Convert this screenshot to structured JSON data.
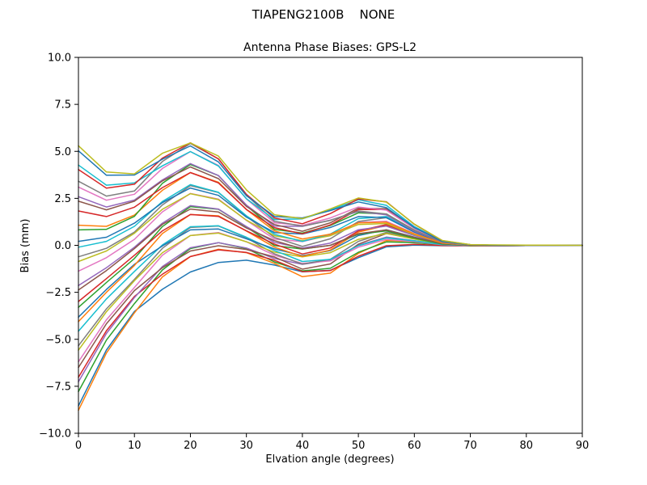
{
  "figure": {
    "background": "#ffffff",
    "frame_color": "#000000"
  },
  "chart_data": {
    "type": "line",
    "title": "TIAPENG2100B    NONE",
    "subtitle": "Antenna Phase Biases: GPS-L2",
    "xlabel": "Elvation angle (degrees)",
    "ylabel": "Bias (mm)",
    "xlim": [
      0,
      90
    ],
    "ylim": [
      -10,
      10
    ],
    "grid": false,
    "legend": "none",
    "x_ticks": [
      0,
      10,
      20,
      30,
      40,
      50,
      60,
      70,
      80,
      90
    ],
    "y_ticks": [
      -10.0,
      -7.5,
      -5.0,
      -2.5,
      0.0,
      2.5,
      5.0,
      7.5,
      10.0
    ],
    "y_tick_labels": [
      "−10.0",
      "−7.5",
      "−5.0",
      "−2.5",
      "0.0",
      "2.5",
      "5.0",
      "7.5",
      "10.0"
    ],
    "x": [
      0,
      5,
      10,
      15,
      20,
      25,
      30,
      35,
      40,
      45,
      50,
      55,
      60,
      65,
      70,
      75,
      80,
      85,
      90
    ],
    "series": [
      {
        "color": "#1f77b4",
        "values": [
          -8.54,
          -5.57,
          -3.52,
          -2.34,
          -1.42,
          -0.91,
          -0.79,
          -1.05,
          -1.41,
          -1.33,
          -0.66,
          -0.08,
          0.01,
          -0.02,
          -0.02,
          -0.02,
          -0.01,
          -0.01,
          0.0
        ]
      },
      {
        "color": "#ff7f0e",
        "values": [
          -8.78,
          -5.73,
          -3.59,
          -1.68,
          -0.6,
          -0.21,
          -0.39,
          -0.96,
          -1.67,
          -1.48,
          -0.43,
          0.26,
          0.2,
          0.03,
          -0.02,
          -0.02,
          -0.01,
          -0.01,
          0.0
        ]
      },
      {
        "color": "#2ca02c",
        "values": [
          -7.78,
          -5.04,
          -3.1,
          -1.31,
          -0.17,
          0.14,
          -0.17,
          -0.88,
          -1.36,
          -1.22,
          -0.37,
          0.18,
          0.14,
          0.02,
          -0.02,
          -0.02,
          -0.01,
          -0.01,
          0.0
        ]
      },
      {
        "color": "#d62728",
        "values": [
          -7.02,
          -4.54,
          -2.72,
          -1.54,
          -0.6,
          -0.24,
          -0.38,
          -0.79,
          -1.4,
          -1.34,
          -0.58,
          -0.02,
          0.05,
          -0.01,
          -0.02,
          -0.02,
          -0.01,
          -0.01,
          0.0
        ]
      },
      {
        "color": "#9467bd",
        "values": [
          -7.26,
          -4.69,
          -2.78,
          -1.13,
          -0.13,
          0.14,
          -0.14,
          -0.7,
          -1.01,
          -0.79,
          0.01,
          0.44,
          0.25,
          0.04,
          -0.01,
          -0.02,
          -0.01,
          0.0,
          0.0
        ]
      },
      {
        "color": "#8c564b",
        "values": [
          -6.5,
          -4.17,
          -2.41,
          -1.19,
          -0.3,
          -0.02,
          -0.22,
          -0.62,
          -1.27,
          -0.99,
          0.06,
          0.63,
          0.38,
          0.07,
          -0.01,
          -0.01,
          -0.01,
          0.0,
          0.0
        ]
      },
      {
        "color": "#e377c2",
        "values": [
          -6.2,
          -3.96,
          -2.24,
          -0.53,
          0.52,
          0.68,
          0.19,
          -0.53,
          -0.96,
          -0.83,
          -0.1,
          0.32,
          0.2,
          0.03,
          -0.01,
          -0.01,
          -0.01,
          0.0,
          0.0
        ]
      },
      {
        "color": "#7f7f7f",
        "values": [
          -5.34,
          -3.38,
          -1.81,
          -0.16,
          0.95,
          1.03,
          0.4,
          -0.45,
          -1.0,
          -0.74,
          0.21,
          0.69,
          0.39,
          0.08,
          -0.01,
          -0.01,
          0.0,
          0.0,
          0.0
        ]
      },
      {
        "color": "#bcbd22",
        "values": [
          -5.58,
          -3.53,
          -1.88,
          -0.39,
          0.52,
          0.65,
          0.19,
          -0.36,
          -0.61,
          -0.39,
          0.32,
          0.63,
          0.33,
          0.06,
          0.0,
          -0.01,
          0.0,
          0.0,
          0.0
        ]
      },
      {
        "color": "#17becf",
        "values": [
          -4.57,
          -2.85,
          -1.39,
          0.02,
          0.99,
          1.04,
          0.43,
          -0.27,
          -0.86,
          -0.75,
          -0.02,
          0.39,
          0.24,
          0.04,
          0.0,
          0.0,
          0.0,
          0.0,
          0.0
        ]
      },
      {
        "color": "#1f77b4",
        "values": [
          -3.82,
          -2.35,
          -1.01,
          -0.03,
          0.82,
          0.87,
          0.35,
          -0.19,
          -0.55,
          -0.28,
          0.52,
          0.83,
          0.44,
          0.09,
          0.0,
          0.0,
          0.0,
          0.0,
          0.0
        ]
      },
      {
        "color": "#ff7f0e",
        "values": [
          -4.06,
          -2.5,
          -1.07,
          0.63,
          1.64,
          1.57,
          0.76,
          -0.1,
          -0.59,
          -0.25,
          0.7,
          1.06,
          0.56,
          0.12,
          0.0,
          0.0,
          0.0,
          0.0,
          0.0
        ]
      },
      {
        "color": "#2ca02c",
        "values": [
          -3.3,
          -1.98,
          -0.7,
          1.0,
          2.06,
          1.92,
          0.97,
          -0.01,
          -0.2,
          0.0,
          0.59,
          0.77,
          0.38,
          0.07,
          0.0,
          0.0,
          0.0,
          0.0,
          0.0
        ]
      },
      {
        "color": "#d62728",
        "values": [
          -2.99,
          -1.77,
          -0.53,
          0.77,
          1.64,
          1.54,
          0.77,
          0.07,
          -0.46,
          -0.14,
          0.77,
          1.1,
          0.57,
          0.12,
          0.01,
          0.0,
          0.0,
          0.0,
          0.0
        ]
      },
      {
        "color": "#9467bd",
        "values": [
          -2.14,
          -1.19,
          -0.1,
          1.18,
          2.11,
          1.93,
          1.0,
          0.16,
          -0.15,
          0.12,
          0.83,
          1.02,
          0.52,
          0.11,
          0.01,
          0.0,
          0.0,
          0.0,
          0.0
        ]
      },
      {
        "color": "#8c564b",
        "values": [
          -2.38,
          -1.34,
          -0.17,
          1.12,
          1.93,
          1.77,
          0.92,
          0.25,
          -0.19,
          0.0,
          0.62,
          0.82,
          0.43,
          0.09,
          0.01,
          0.0,
          0.0,
          0.0,
          0.0
        ]
      },
      {
        "color": "#e377c2",
        "values": [
          -1.37,
          -0.66,
          0.32,
          1.78,
          2.76,
          2.46,
          1.33,
          0.33,
          0.2,
          0.55,
          1.22,
          1.28,
          0.63,
          0.13,
          0.01,
          0.0,
          0.0,
          0.0,
          0.0
        ]
      },
      {
        "color": "#7f7f7f",
        "values": [
          -0.61,
          -0.16,
          0.7,
          2.15,
          3.18,
          2.81,
          1.54,
          0.42,
          -0.06,
          0.35,
          1.27,
          1.47,
          0.75,
          0.16,
          0.01,
          0.0,
          0.0,
          0.0,
          0.0
        ]
      },
      {
        "color": "#bcbd22",
        "values": [
          -0.86,
          -0.3,
          0.64,
          1.92,
          2.75,
          2.43,
          1.34,
          0.51,
          0.25,
          0.51,
          1.11,
          1.16,
          0.57,
          0.12,
          0.02,
          0.0,
          0.0,
          0.0,
          0.0
        ]
      },
      {
        "color": "#17becf",
        "values": [
          -0.1,
          0.21,
          1.01,
          2.33,
          3.23,
          2.82,
          1.57,
          0.59,
          0.21,
          0.6,
          1.42,
          1.53,
          0.76,
          0.17,
          0.02,
          0.0,
          0.0,
          0.0,
          0.0
        ]
      },
      {
        "color": "#1f77b4",
        "values": [
          0.21,
          0.43,
          1.18,
          2.27,
          3.05,
          2.66,
          1.5,
          0.68,
          0.6,
          0.95,
          1.53,
          1.47,
          0.7,
          0.15,
          0.02,
          0.0,
          0.0,
          0.0,
          0.0
        ]
      },
      {
        "color": "#ff7f0e",
        "values": [
          1.07,
          1.01,
          1.61,
          2.93,
          3.87,
          3.36,
          1.9,
          0.77,
          0.34,
          0.59,
          1.19,
          1.23,
          0.61,
          0.13,
          0.02,
          0.0,
          0.0,
          0.0,
          0.0
        ]
      },
      {
        "color": "#2ca02c",
        "values": [
          0.82,
          0.85,
          1.54,
          3.3,
          4.3,
          3.71,
          2.11,
          0.85,
          0.65,
          1.06,
          1.73,
          1.67,
          0.81,
          0.18,
          0.02,
          0.0,
          0.0,
          0.0,
          0.0
        ]
      },
      {
        "color": "#d62728",
        "values": [
          1.83,
          1.53,
          2.03,
          3.07,
          3.87,
          3.32,
          1.91,
          0.94,
          0.61,
          1.09,
          1.91,
          1.9,
          0.93,
          0.21,
          0.02,
          0.0,
          0.0,
          0.0,
          0.0
        ]
      },
      {
        "color": "#9467bd",
        "values": [
          2.59,
          2.04,
          2.41,
          3.48,
          4.35,
          3.71,
          2.14,
          1.02,
          1.01,
          1.34,
          1.8,
          1.62,
          0.76,
          0.17,
          0.02,
          0.0,
          0.0,
          0.0,
          0.0
        ]
      },
      {
        "color": "#8c564b",
        "values": [
          2.35,
          1.89,
          2.35,
          3.43,
          4.17,
          3.55,
          2.07,
          1.11,
          0.75,
          1.2,
          1.98,
          1.95,
          0.95,
          0.21,
          0.02,
          0.0,
          0.0,
          0.0,
          0.0
        ]
      },
      {
        "color": "#e377c2",
        "values": [
          3.1,
          2.4,
          2.72,
          4.09,
          4.99,
          4.25,
          2.47,
          1.2,
          1.06,
          1.46,
          2.04,
          1.87,
          0.89,
          0.2,
          0.03,
          0.0,
          0.0,
          0.0,
          0.0
        ]
      },
      {
        "color": "#7f7f7f",
        "values": [
          3.41,
          2.62,
          2.89,
          4.46,
          5.42,
          4.6,
          2.68,
          1.28,
          1.02,
          1.33,
          1.83,
          1.67,
          0.8,
          0.18,
          0.03,
          0.0,
          0.0,
          0.0,
          0.0
        ]
      },
      {
        "color": "#17becf",
        "values": [
          4.27,
          3.2,
          3.32,
          4.23,
          4.99,
          4.22,
          2.48,
          1.37,
          1.41,
          1.89,
          2.42,
          2.13,
          1.0,
          0.23,
          0.03,
          0.0,
          0.0,
          0.0,
          0.0
        ]
      },
      {
        "color": "#d62728",
        "values": [
          4.03,
          3.04,
          3.25,
          4.64,
          5.46,
          4.6,
          2.71,
          1.46,
          1.15,
          1.69,
          2.47,
          2.32,
          1.12,
          0.25,
          0.03,
          0.0,
          0.0,
          0.0,
          0.0
        ]
      },
      {
        "color": "#1f77b4",
        "values": [
          5.03,
          3.73,
          3.74,
          4.58,
          5.29,
          4.44,
          2.64,
          1.54,
          1.46,
          1.85,
          2.31,
          2.01,
          0.94,
          0.21,
          0.03,
          0.0,
          0.0,
          0.0,
          0.0
        ]
      },
      {
        "color": "#bcbd22",
        "values": [
          5.3,
          3.9,
          3.8,
          4.9,
          5.45,
          4.75,
          2.95,
          1.63,
          1.42,
          1.94,
          2.52,
          2.3,
          1.13,
          0.26,
          0.04,
          0.02,
          0.01,
          0.01,
          0.0
        ]
      }
    ]
  }
}
